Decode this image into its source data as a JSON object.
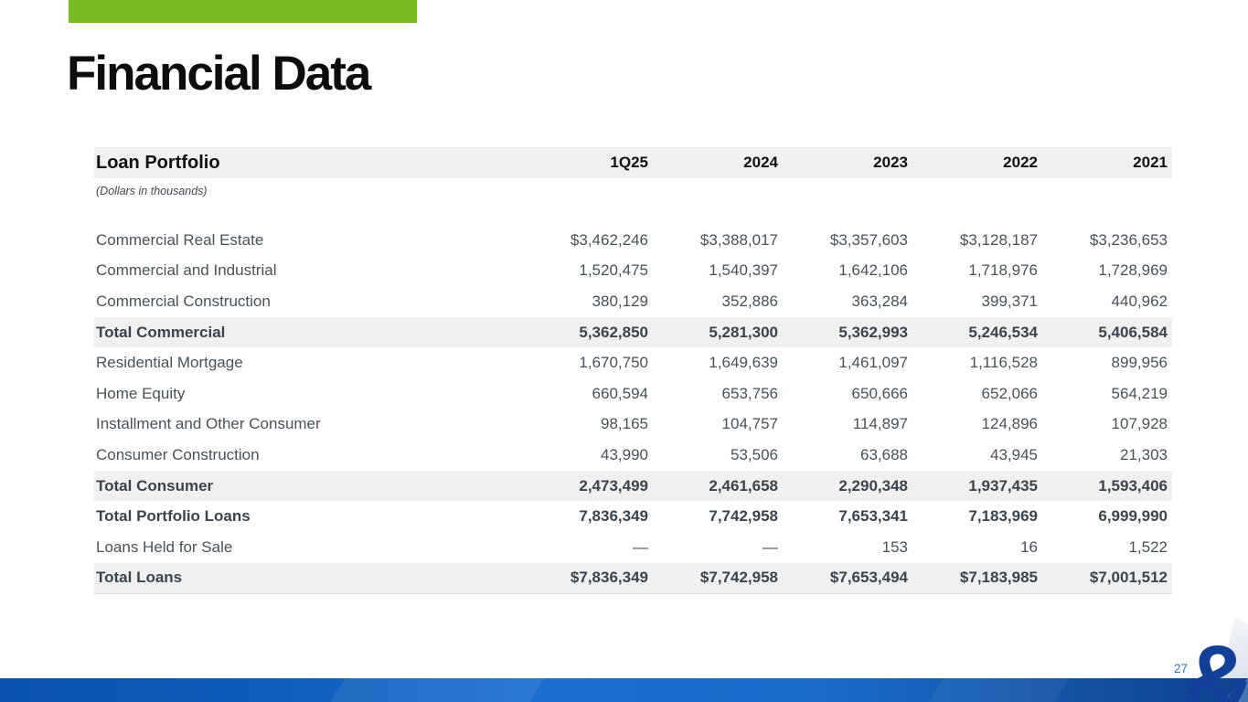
{
  "slide": {
    "title": "Financial Data",
    "colors": {
      "accent_green": "#76bc21",
      "brand_navy": "#123f97",
      "band_blue": "#1a6bca",
      "shaded_row_gray": "#f0f0f0",
      "page_number_blue": "#2e74b5"
    }
  },
  "table": {
    "title": "Loan Portfolio",
    "subtitle": "(Dollars in thousands)",
    "columns": [
      "1Q25",
      "2024",
      "2023",
      "2022",
      "2021"
    ],
    "rows": [
      {
        "label": "Commercial Real Estate",
        "values": [
          "$3,462,246",
          "$3,388,017",
          "$3,357,603",
          "$3,128,187",
          "$3,236,653"
        ],
        "style": "normal"
      },
      {
        "label": "Commercial and Industrial",
        "values": [
          "1,520,475",
          "1,540,397",
          "1,642,106",
          "1,718,976",
          "1,728,969"
        ],
        "style": "normal"
      },
      {
        "label": "Commercial Construction",
        "values": [
          "380,129",
          "352,886",
          "363,284",
          "399,371",
          "440,962"
        ],
        "style": "normal"
      },
      {
        "label": "Total Commercial",
        "values": [
          "5,362,850",
          "5,281,300",
          "5,362,993",
          "5,246,534",
          "5,406,584"
        ],
        "style": "total-shaded"
      },
      {
        "label": "Residential Mortgage",
        "values": [
          "1,670,750",
          "1,649,639",
          "1,461,097",
          "1,116,528",
          "899,956"
        ],
        "style": "normal"
      },
      {
        "label": "Home Equity",
        "values": [
          "660,594",
          "653,756",
          "650,666",
          "652,066",
          "564,219"
        ],
        "style": "normal"
      },
      {
        "label": "Installment and Other Consumer",
        "values": [
          "98,165",
          "104,757",
          "114,897",
          "124,896",
          "107,928"
        ],
        "style": "normal"
      },
      {
        "label": "Consumer Construction",
        "values": [
          "43,990",
          "53,506",
          "63,688",
          "43,945",
          "21,303"
        ],
        "style": "normal"
      },
      {
        "label": "Total Consumer",
        "values": [
          "2,473,499",
          "2,461,658",
          "2,290,348",
          "1,937,435",
          "1,593,406"
        ],
        "style": "total-shaded"
      },
      {
        "label": "Total Portfolio Loans",
        "values": [
          "7,836,349",
          "7,742,958",
          "7,653,341",
          "7,183,969",
          "6,999,990"
        ],
        "style": "total"
      },
      {
        "label": "Loans Held for Sale",
        "values": [
          "—",
          "—",
          "153",
          "16",
          "1,522"
        ],
        "style": "normal"
      },
      {
        "label": "Total Loans",
        "values": [
          "$7,836,349",
          "$7,742,958",
          "$7,653,494",
          "$7,183,985",
          "$7,001,512"
        ],
        "style": "total-shaded"
      }
    ]
  },
  "footer": {
    "page_number": "27",
    "logo_glyph": "&"
  }
}
